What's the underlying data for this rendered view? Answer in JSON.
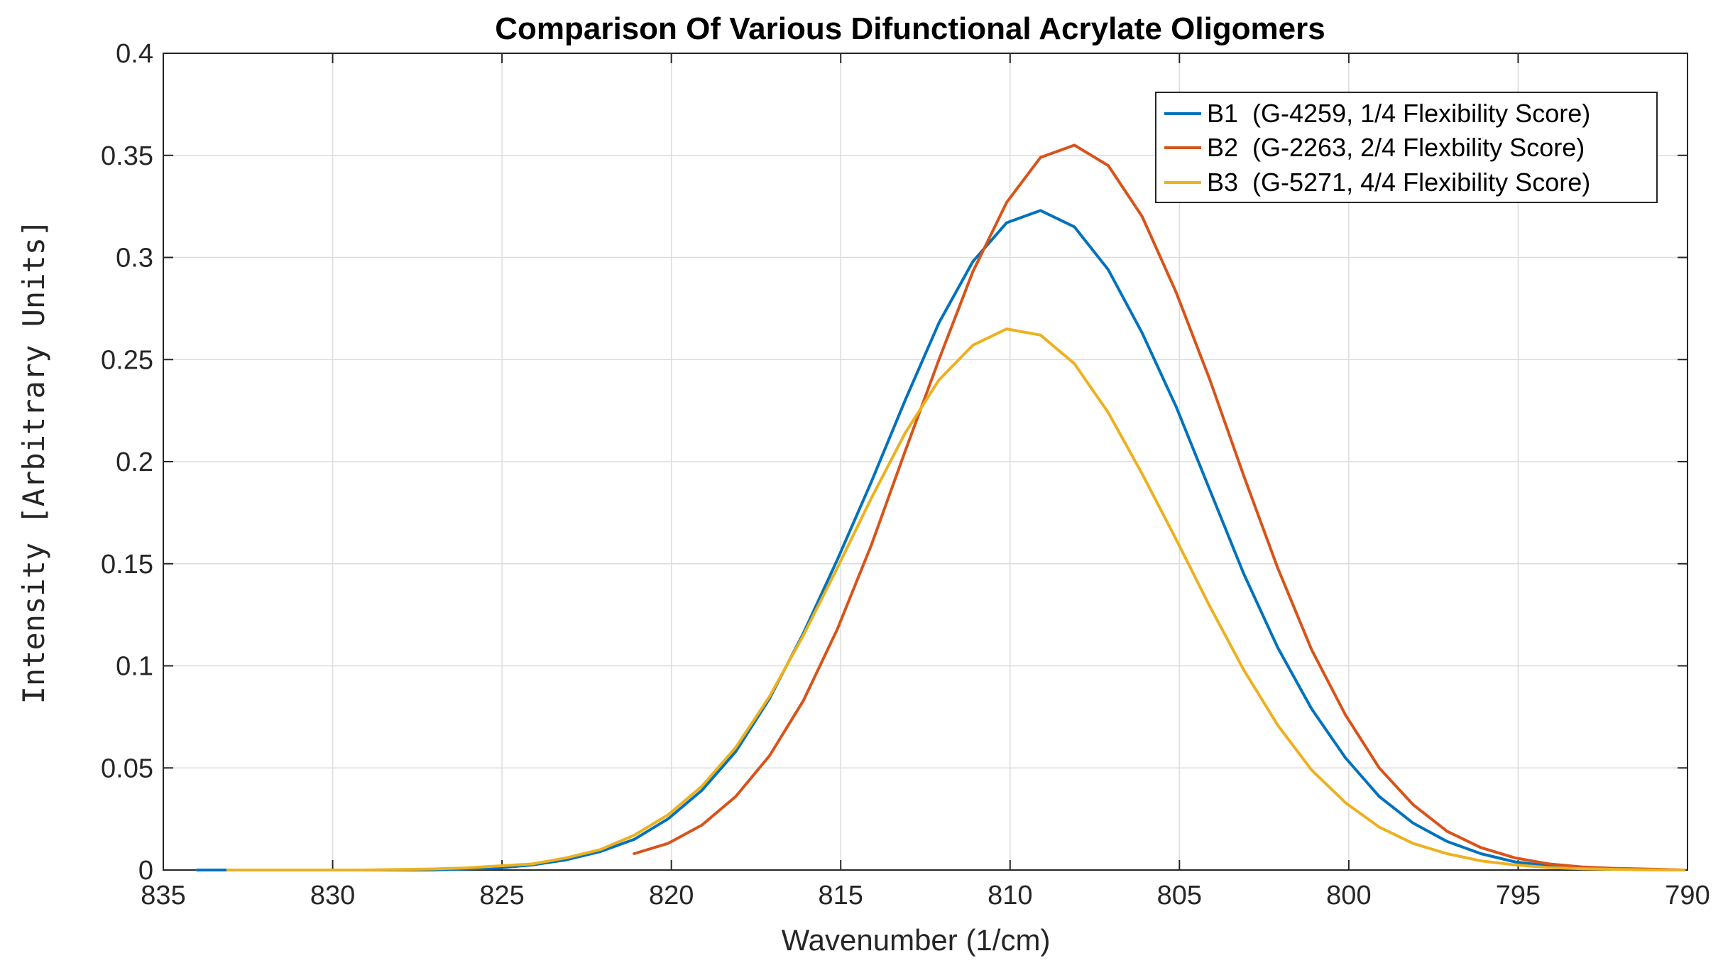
{
  "chart_data": {
    "type": "line",
    "title": "Comparison Of Various Difunctional Acrylate Oligomers",
    "xlabel": "Wavenumber (1/cm)",
    "ylabel": "Intensity [Arbitrary Units]",
    "xlim": [
      835,
      790
    ],
    "x_reversed": true,
    "ylim": [
      0,
      0.4
    ],
    "grid": true,
    "legend_position": "top-right",
    "x_ticks": [
      835,
      830,
      825,
      820,
      815,
      810,
      805,
      800,
      795,
      790
    ],
    "x_tick_labels": [
      "835",
      "830",
      "825",
      "820",
      "815",
      "810",
      "805",
      "800",
      "795",
      "790"
    ],
    "y_ticks": [
      0,
      0.05,
      0.1,
      0.15,
      0.2,
      0.25,
      0.3,
      0.35,
      0.4
    ],
    "y_tick_labels": [
      "0",
      "0.05",
      "0.1",
      "0.15",
      "0.2",
      "0.25",
      "0.3",
      "0.35",
      "0.4"
    ],
    "series": [
      {
        "name": "B1  (G-4259, 1/4 Flexibility Score)",
        "color": "#0072BD",
        "x": [
          834.0,
          833.1,
          831.1,
          829.1,
          827.1,
          826.1,
          825.1,
          824.1,
          823.1,
          822.1,
          821.1,
          820.1,
          819.1,
          818.1,
          817.1,
          816.1,
          815.1,
          814.1,
          813.1,
          812.1,
          811.1,
          810.1,
          809.1,
          808.1,
          807.1,
          806.1,
          805.1,
          804.1,
          803.1,
          802.1,
          801.1,
          800.1,
          799.1,
          798.1,
          797.1,
          796.1,
          795.1,
          794.1,
          793.1,
          792.1,
          791.1,
          790.1
        ],
        "y": [
          0.0,
          0.0,
          0.0,
          0.0,
          0.0,
          0.0005,
          0.001,
          0.0025,
          0.005,
          0.009,
          0.015,
          0.025,
          0.039,
          0.058,
          0.084,
          0.116,
          0.152,
          0.19,
          0.23,
          0.268,
          0.298,
          0.317,
          0.323,
          0.315,
          0.294,
          0.263,
          0.227,
          0.186,
          0.145,
          0.109,
          0.079,
          0.055,
          0.036,
          0.023,
          0.014,
          0.008,
          0.004,
          0.002,
          0.001,
          0.0005,
          0.0002,
          0.0
        ]
      },
      {
        "name": "B2  (G-2263, 2/4 Flexbility Score)",
        "color": "#D95319",
        "x": [
          821.1,
          820.1,
          819.1,
          818.1,
          817.1,
          816.1,
          815.1,
          814.1,
          813.1,
          812.1,
          811.1,
          810.1,
          809.1,
          808.1,
          807.1,
          806.1,
          805.1,
          804.1,
          803.1,
          802.1,
          801.1,
          800.1,
          799.1,
          798.1,
          797.1,
          796.1,
          795.1,
          794.1,
          793.1,
          792.1,
          791.1,
          790.1
        ],
        "y": [
          0.008,
          0.013,
          0.022,
          0.036,
          0.056,
          0.083,
          0.118,
          0.159,
          0.205,
          0.25,
          0.293,
          0.327,
          0.349,
          0.355,
          0.345,
          0.32,
          0.283,
          0.24,
          0.193,
          0.148,
          0.108,
          0.076,
          0.05,
          0.032,
          0.019,
          0.011,
          0.006,
          0.003,
          0.0015,
          0.0008,
          0.0004,
          0.0
        ]
      },
      {
        "name": "B3  (G-5271, 4/4 Flexibility Score)",
        "color": "#EDB120",
        "x": [
          833.1,
          831.1,
          829.1,
          827.1,
          826.1,
          825.1,
          824.1,
          823.1,
          822.1,
          821.1,
          820.1,
          819.1,
          818.1,
          817.1,
          816.1,
          815.1,
          814.1,
          813.1,
          812.1,
          811.1,
          810.1,
          809.1,
          808.1,
          807.1,
          806.1,
          805.1,
          804.1,
          803.1,
          802.1,
          801.1,
          800.1,
          799.1,
          798.1,
          797.1,
          796.1,
          795.1,
          794.1,
          793.1,
          792.1,
          791.1,
          790.1
        ],
        "y": [
          0.0,
          0.0,
          0.0,
          0.0005,
          0.001,
          0.002,
          0.003,
          0.006,
          0.01,
          0.017,
          0.027,
          0.041,
          0.06,
          0.085,
          0.115,
          0.148,
          0.182,
          0.214,
          0.24,
          0.257,
          0.265,
          0.262,
          0.248,
          0.224,
          0.194,
          0.162,
          0.129,
          0.098,
          0.071,
          0.049,
          0.033,
          0.021,
          0.013,
          0.008,
          0.0045,
          0.0025,
          0.0012,
          0.0006,
          0.0003,
          0.0001,
          0.0
        ]
      }
    ]
  }
}
